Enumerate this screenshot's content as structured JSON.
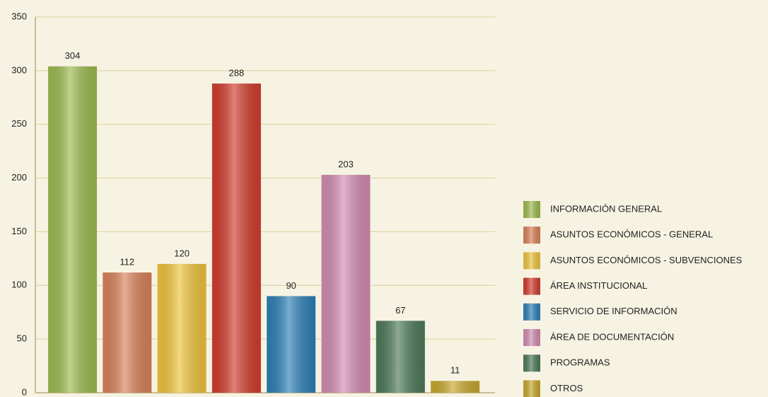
{
  "chart_data": {
    "type": "bar",
    "categories": [
      "INFORMACIÓN GENERAL",
      "ASUNTOS ECONÓMICOS - GENERAL",
      "ASUNTOS ECONÓMICOS - SUBVENCIONES",
      "ÁREA INSTITUCIONAL",
      "SERVICIO DE INFORMACIÓN",
      "ÁREA DE DOCUMENTACIÓN",
      "PROGRAMAS",
      "OTROS"
    ],
    "values": [
      304,
      112,
      120,
      288,
      90,
      203,
      67,
      11
    ],
    "colors": [
      "#9dbb4f",
      "#d9825a",
      "#efc53d",
      "#d23d2e",
      "#2d80b8",
      "#d38db2",
      "#4e7a5a",
      "#c8a82e"
    ],
    "ylim": [
      0,
      350
    ],
    "yticks": [
      0,
      50,
      100,
      150,
      200,
      250,
      300,
      350
    ],
    "grid": true,
    "legend": "right"
  }
}
